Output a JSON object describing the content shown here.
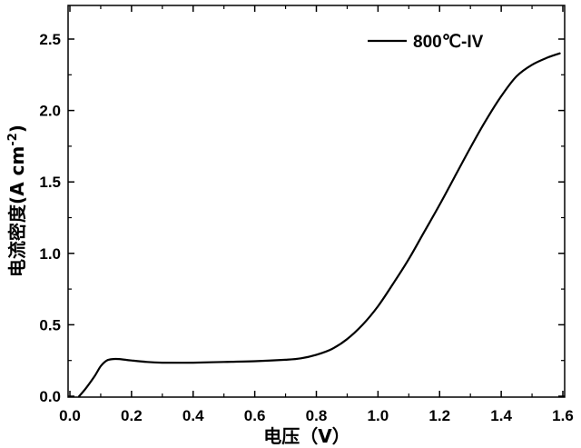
{
  "chart_data": {
    "type": "line",
    "title": "",
    "xlabel": "电压（V）",
    "ylabel_main": "电流密度(A cm",
    "ylabel_sup": "-2",
    "ylabel_close": ")",
    "xlim": [
      0.0,
      1.6
    ],
    "ylim": [
      0.0,
      2.65
    ],
    "x_ticks": [
      "0.0",
      "0.2",
      "0.4",
      "0.6",
      "0.8",
      "1.0",
      "1.2",
      "1.4",
      "1.6"
    ],
    "y_ticks": [
      "0.0",
      "0.5",
      "1.0",
      "1.5",
      "2.0",
      "2.5"
    ],
    "grid": false,
    "legend_position": "top-right",
    "series": [
      {
        "name": "800℃-IV",
        "color": "#000000",
        "x": [
          0.03,
          0.05,
          0.08,
          0.1,
          0.12,
          0.14,
          0.16,
          0.18,
          0.2,
          0.25,
          0.3,
          0.4,
          0.5,
          0.6,
          0.7,
          0.75,
          0.8,
          0.85,
          0.9,
          0.95,
          1.0,
          1.05,
          1.1,
          1.15,
          1.2,
          1.25,
          1.3,
          1.35,
          1.4,
          1.45,
          1.5,
          1.55,
          1.59
        ],
        "y": [
          0.0,
          0.05,
          0.14,
          0.21,
          0.25,
          0.26,
          0.26,
          0.255,
          0.25,
          0.24,
          0.235,
          0.235,
          0.24,
          0.245,
          0.255,
          0.265,
          0.29,
          0.33,
          0.4,
          0.5,
          0.63,
          0.79,
          0.96,
          1.15,
          1.34,
          1.54,
          1.74,
          1.93,
          2.1,
          2.24,
          2.32,
          2.37,
          2.4
        ]
      }
    ]
  }
}
